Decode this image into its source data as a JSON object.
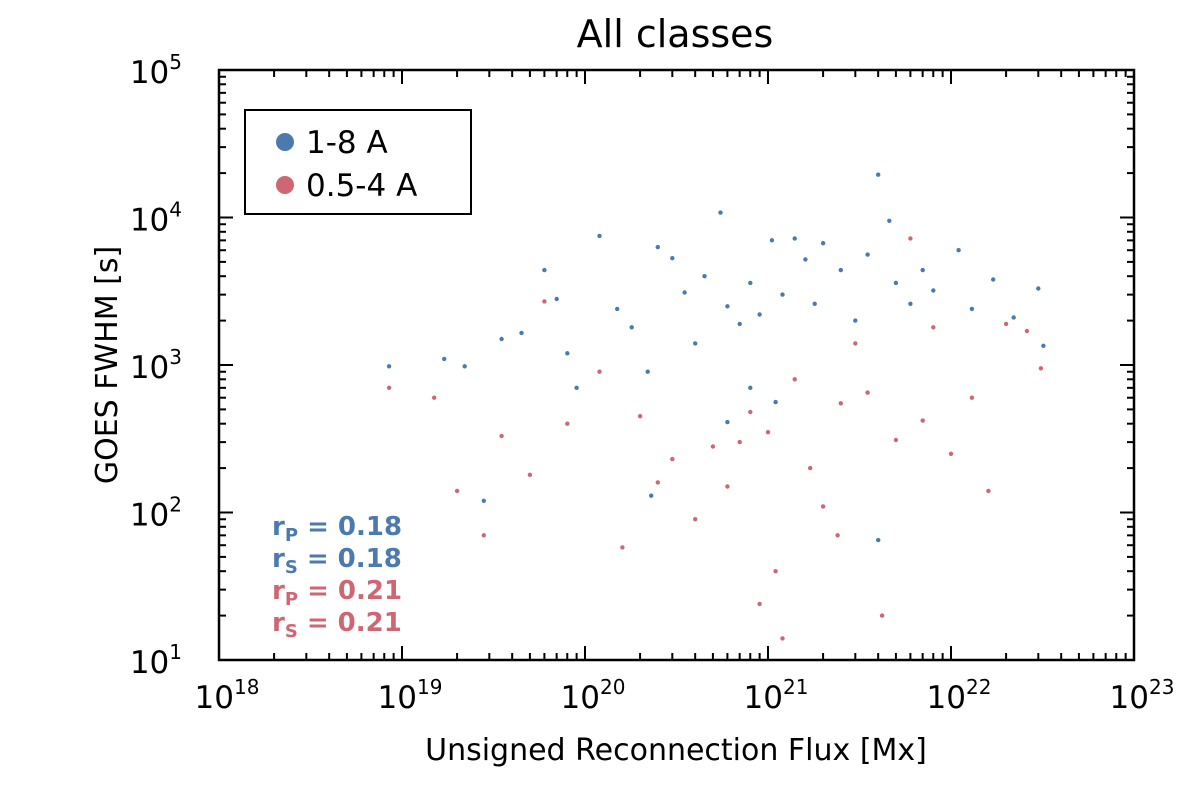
{
  "chart_data": {
    "type": "scatter",
    "title": "All classes",
    "xlabel": "Unsigned Reconnection Flux [Mx]",
    "ylabel": "GOES FWHM [s]",
    "xscale": "log",
    "yscale": "log",
    "xlim": [
      1e+18,
      1e+23
    ],
    "ylim": [
      10,
      100000
    ],
    "x_ticks": [
      {
        "base": "10",
        "exp": "18",
        "value": 1e+18
      },
      {
        "base": "10",
        "exp": "19",
        "value": 1e+19
      },
      {
        "base": "10",
        "exp": "20",
        "value": 1e+20
      },
      {
        "base": "10",
        "exp": "21",
        "value": 1e+21
      },
      {
        "base": "10",
        "exp": "22",
        "value": 1e+22
      },
      {
        "base": "10",
        "exp": "23",
        "value": 1e+23
      }
    ],
    "y_ticks": [
      {
        "base": "10",
        "exp": "1",
        "value": 10
      },
      {
        "base": "10",
        "exp": "2",
        "value": 100
      },
      {
        "base": "10",
        "exp": "3",
        "value": 1000
      },
      {
        "base": "10",
        "exp": "4",
        "value": 10000
      },
      {
        "base": "10",
        "exp": "5",
        "value": 100000
      }
    ],
    "legend_position": "top-left",
    "series": [
      {
        "name": "1-8 A",
        "color": "#4a7aae",
        "points": [
          [
            8.5e+18,
            980
          ],
          [
            1.7e+19,
            1100
          ],
          [
            2.2e+19,
            980
          ],
          [
            2.8e+19,
            120
          ],
          [
            3.5e+19,
            1500
          ],
          [
            4.5e+19,
            1650
          ],
          [
            6e+19,
            4400
          ],
          [
            7e+19,
            2800
          ],
          [
            8e+19,
            1200
          ],
          [
            9e+19,
            700
          ],
          [
            1.2e+20,
            7500
          ],
          [
            1.5e+20,
            2400
          ],
          [
            1.8e+20,
            1800
          ],
          [
            2.2e+20,
            900
          ],
          [
            2.5e+20,
            6300
          ],
          [
            3e+20,
            5300
          ],
          [
            3.5e+20,
            3100
          ],
          [
            4e+20,
            1400
          ],
          [
            4.5e+20,
            4000
          ],
          [
            5.5e+20,
            10800
          ],
          [
            6e+20,
            2500
          ],
          [
            7e+20,
            1900
          ],
          [
            8e+20,
            3600
          ],
          [
            9e+20,
            2200
          ],
          [
            1.05e+21,
            7000
          ],
          [
            1.2e+21,
            3000
          ],
          [
            1.4e+21,
            7200
          ],
          [
            1.6e+21,
            5200
          ],
          [
            1.8e+21,
            2600
          ],
          [
            2e+21,
            6700
          ],
          [
            2.5e+21,
            4400
          ],
          [
            3e+21,
            2000
          ],
          [
            3.5e+21,
            5600
          ],
          [
            4e+21,
            19500
          ],
          [
            4.6e+21,
            9500
          ],
          [
            5e+21,
            3600
          ],
          [
            6e+21,
            2600
          ],
          [
            7e+21,
            4400
          ],
          [
            8e+21,
            3200
          ],
          [
            1.1e+22,
            6000
          ],
          [
            1.3e+22,
            2400
          ],
          [
            1.7e+22,
            3800
          ],
          [
            2.2e+22,
            2100
          ],
          [
            3e+22,
            3300
          ],
          [
            3.2e+22,
            1350
          ],
          [
            4e+21,
            65
          ],
          [
            2.3e+20,
            130
          ],
          [
            6e+20,
            410
          ],
          [
            8e+20,
            700
          ],
          [
            1.1e+21,
            560
          ]
        ]
      },
      {
        "name": "0.5-4 A",
        "color": "#cf6673",
        "points": [
          [
            8.5e+18,
            700
          ],
          [
            1.5e+19,
            600
          ],
          [
            2e+19,
            140
          ],
          [
            2.8e+19,
            70
          ],
          [
            3.5e+19,
            330
          ],
          [
            5e+19,
            180
          ],
          [
            6e+19,
            2700
          ],
          [
            8e+19,
            400
          ],
          [
            1.2e+20,
            900
          ],
          [
            1.6e+20,
            58
          ],
          [
            2e+20,
            450
          ],
          [
            2.5e+20,
            160
          ],
          [
            3e+20,
            230
          ],
          [
            4e+20,
            90
          ],
          [
            5e+20,
            280
          ],
          [
            6e+20,
            150
          ],
          [
            7e+20,
            300
          ],
          [
            8e+20,
            480
          ],
          [
            9e+20,
            24
          ],
          [
            1e+21,
            350
          ],
          [
            1.2e+21,
            14
          ],
          [
            1.4e+21,
            800
          ],
          [
            1.7e+21,
            200
          ],
          [
            2e+21,
            110
          ],
          [
            2.5e+21,
            550
          ],
          [
            3e+21,
            1400
          ],
          [
            3.5e+21,
            650
          ],
          [
            4.2e+21,
            20
          ],
          [
            5e+21,
            310
          ],
          [
            6e+21,
            7200
          ],
          [
            7e+21,
            420
          ],
          [
            8e+21,
            1800
          ],
          [
            1e+22,
            250
          ],
          [
            1.3e+22,
            600
          ],
          [
            1.6e+22,
            140
          ],
          [
            2e+22,
            1900
          ],
          [
            2.6e+22,
            1700
          ],
          [
            3.1e+22,
            950
          ],
          [
            2.4e+21,
            70
          ],
          [
            1.1e+21,
            40
          ]
        ]
      }
    ],
    "stats": [
      {
        "sym": "r",
        "sub": "P",
        "rest": " = 0.18",
        "color": "#4a7aae"
      },
      {
        "sym": "r",
        "sub": "S",
        "rest": " = 0.18",
        "color": "#4a7aae"
      },
      {
        "sym": "r",
        "sub": "P",
        "rest": " = 0.21",
        "color": "#cf6673"
      },
      {
        "sym": "r",
        "sub": "S",
        "rest": " = 0.21",
        "color": "#cf6673"
      }
    ]
  }
}
